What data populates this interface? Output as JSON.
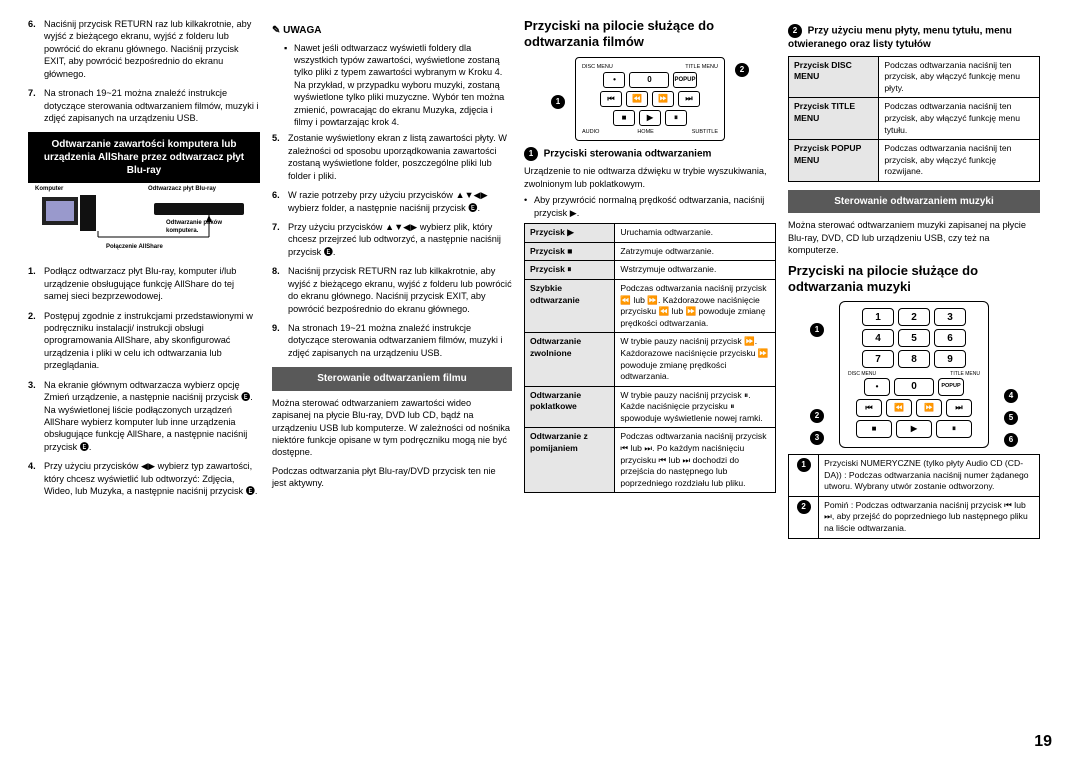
{
  "page_number": "19",
  "col1": {
    "i6": "Naciśnij przycisk RETURN raz lub kilkakrotnie, aby wyjść z bieżącego ekranu, wyjść z folderu lub powrócić do ekranu głównego.  Naciśnij przycisk EXIT, aby powrócić bezpośrednio do ekranu głównego.",
    "i7": "Na stronach 19~21 można znaleźć instrukcje dotyczące sterowania odtwarzaniem filmów, muzyki i zdjęć zapisanych na urządzeniu USB.",
    "blackbox": "Odtwarzanie zawartości komputera lub urządzenia AllShare przez odtwarzacz płyt Blu-ray",
    "diagram": {
      "l1": "Komputer",
      "l2": "Odtwarzacz płyt Blu-ray",
      "l3": "Odtwarzanie plików komputera.",
      "l4": "Połączenie AllShare"
    },
    "s1": "Podłącz odtwarzacz płyt Blu-ray, komputer i/lub urządzenie obsługujące funkcję AllShare do tej samej sieci bezprzewodowej.",
    "s2": "Postępuj zgodnie z instrukcjami przedstawionymi w podręczniku instalacji/ instrukcji obsługi oprogramowania AllShare, aby skonfigurować urządzenia i pliki w celu ich odtwarzania lub przeglądania.",
    "s3": "Na ekranie głównym odtwarzacza wybierz opcję Zmień urządzenie, a następnie naciśnij przycisk 🅔. Na wyświetlonej liście podłączonych urządzeń AllShare wybierz komputer lub inne urządzenia obsługujące funkcję AllShare, a następnie naciśnij przycisk 🅔.",
    "s4": "Przy użyciu przycisków ◀▶ wybierz typ zawartości, który chcesz wyświetlić lub odtworzyć: Zdjęcia, Wideo, lub Muzyka, a następnie naciśnij przycisk 🅔."
  },
  "col2": {
    "note": "UWAGA",
    "nb": "Nawet jeśli odtwarzacz wyświetli foldery dla wszystkich typów zawartości, wyświetlone zostaną tylko pliki z typem zawartości wybranym w Kroku 4. Na przykład, w przypadku wyboru muzyki, zostaną wyświetlone tylko pliki muzyczne. Wybór ten można zmienić, powracając do ekranu Muzyka, zdjęcia i filmy i powtarzając krok 4.",
    "i5": "Zostanie wyświetlony ekran z listą zawartości płyty. W zależności od sposobu uporządkowania zawartości zostaną wyświetlone folder, poszczególne pliki lub folder i pliki.",
    "i6": "W razie potrzeby przy użyciu przycisków ▲▼◀▶ wybierz folder, a następnie naciśnij przycisk 🅔.",
    "i7": "Przy użyciu przycisków ▲▼◀▶ wybierz plik, który chcesz przejrzeć lub odtworzyć, a następnie naciśnij przycisk 🅔.",
    "i8": "Naciśnij przycisk RETURN raz lub kilkakrotnie, aby wyjść z bieżącego ekranu, wyjść z folderu lub powrócić do ekranu głównego.  Naciśnij przycisk EXIT, aby powrócić bezpośrednio do ekranu głównego.",
    "i9": "Na stronach 19~21 można znaleźć instrukcje dotyczące sterowania odtwarzaniem filmów, muzyki i zdjęć zapisanych na urządzeniu USB.",
    "grey": "Sterowanie odtwarzaniem filmu",
    "p1": "Można sterować odtwarzaniem zawartości wideo zapisanej na płycie Blu-ray, DVD lub CD, bądź na urządzeniu USB lub komputerze. W zależności od nośnika niektóre funkcje opisane w tym podręczniku mogą nie być dostępne.",
    "p2": "Podczas odtwarzania płyt Blu-ray/DVD przycisk ten nie jest aktywny."
  },
  "col3": {
    "title": "Przyciski na pilocie służące do odtwarzania filmów",
    "h1": "Przyciski sterowania odtwarzaniem",
    "p1": "Urządzenie to nie odtwarza dźwięku w trybie wyszukiwania, zwolnionym lub poklatkowym.",
    "p2": "Aby przywrócić normalną prędkość odtwarzania, naciśnij przycisk ▶.",
    "tbl": [
      [
        "Przycisk ▶",
        "Uruchamia odtwarzanie."
      ],
      [
        "Przycisk ■",
        "Zatrzymuje odtwarzanie."
      ],
      [
        "Przycisk ⏸",
        "Wstrzymuje odtwarzanie."
      ],
      [
        "Szybkie odtwarzanie",
        "Podczas odtwarzania naciśnij przycisk ⏪ lub ⏩. Każdorazowe naciśnięcie przycisku ⏪ lub ⏩ powoduje zmianę prędkości odtwarzania."
      ],
      [
        "Odtwarzanie zwolnione",
        "W trybie pauzy naciśnij przycisk ⏩. Każdorazowe naciśnięcie przycisku ⏩ powoduje zmianę prędkości odtwarzania."
      ],
      [
        "Odtwarzanie poklatkowe",
        "W trybie pauzy naciśnij przycisk ⏸. Każde naciśnięcie przycisku ⏸ spowoduje wyświetlenie nowej ramki."
      ],
      [
        "Odtwarzanie z pomijaniem",
        "Podczas odtwarzania naciśnij przycisk ⏮ lub ⏭. Po każdym naciśnięciu przycisku ⏮ lub ⏭ dochodzi do przejścia do następnego lub poprzedniego rozdziału lub pliku."
      ]
    ]
  },
  "col4": {
    "h2_title": "Przy użyciu menu płyty, menu tytułu, menu otwieranego oraz listy tytułów",
    "menus": [
      [
        "Przycisk DISC MENU",
        "Podczas odtwarzania naciśnij ten przycisk, aby włączyć funkcję menu płyty."
      ],
      [
        "Przycisk TITLE MENU",
        "Podczas odtwarzania naciśnij ten przycisk, aby włączyć funkcję menu tytułu."
      ],
      [
        "Przycisk POPUP MENU",
        "Podczas odtwarzania naciśnij ten przycisk, aby włączyć funkcję rozwijane."
      ]
    ],
    "grey": "Sterowanie odtwarzaniem muzyki",
    "p1": "Można sterować odtwarzaniem muzyki zapisanej na płycie Blu-ray, DVD, CD lub urządzeniu USB, czy też na komputerze.",
    "title2": "Przyciski na pilocie służące do odtwarzania muzyki",
    "keypad": [
      "1",
      "2",
      "3",
      "4",
      "5",
      "6",
      "7",
      "8",
      "9",
      "0"
    ],
    "bottom_tbl": [
      [
        "1",
        "Przyciski NUMERYCZNE (tylko płyty Audio CD (CD-DA)) : Podczas odtwarzania naciśnij numer żądanego utworu. Wybrany utwór zostanie odtworzony."
      ],
      [
        "2",
        "Pomiń : Podczas odtwarzania naciśnij przycisk ⏮ lub ⏭, aby przejść do poprzedniego lub następnego pliku na liście odtwarzania."
      ]
    ]
  }
}
